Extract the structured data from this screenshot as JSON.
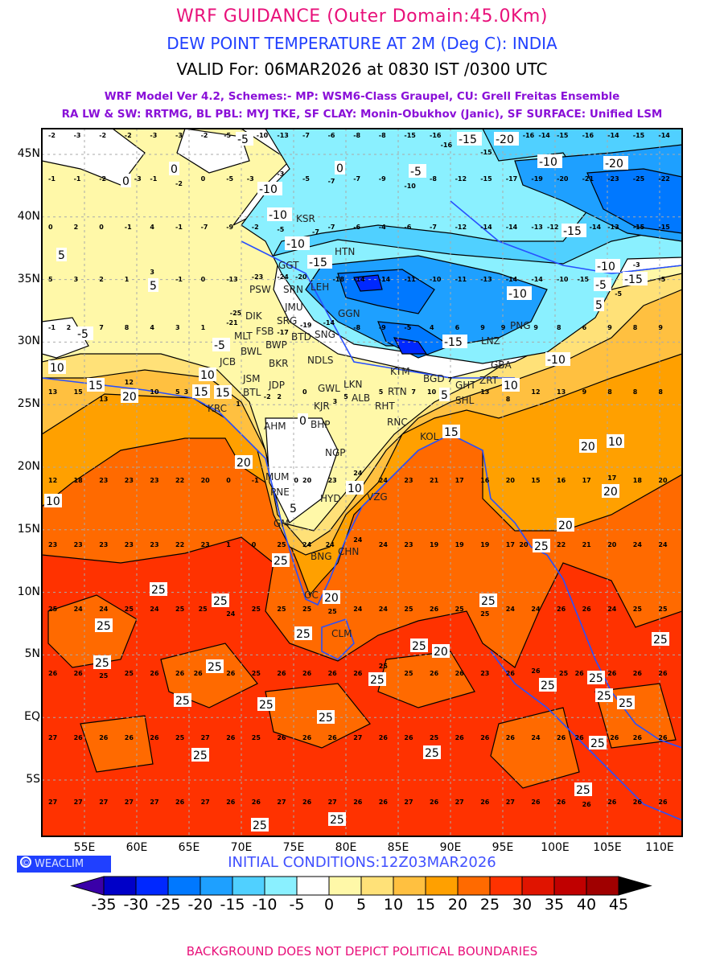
{
  "header": {
    "title": "WRF GUIDANCE (Outer Domain:45.0Km)",
    "subtitle": "DEW POINT TEMPERATURE AT 2M (Deg C): INDIA",
    "valid": "VALID For: 06MAR2026 at 0830 IST /0300 UTC",
    "model_line1": "WRF Model Ver 4.2, Schemes:- MP: WSM6-Class Graupel, CU: Grell Freitas Ensemble",
    "model_line2": "RA LW & SW: RRTMG, BL PBL: MYJ TKE, SF CLAY: Monin-Obukhov (Janic), SF SURFACE: Unified LSM"
  },
  "map": {
    "lat_labels": [
      "45N",
      "40N",
      "35N",
      "30N",
      "25N",
      "20N",
      "15N",
      "10N",
      "5N",
      "EQ",
      "5S"
    ],
    "lon_labels": [
      "55E",
      "60E",
      "65E",
      "70E",
      "75E",
      "80E",
      "85E",
      "90E",
      "95E",
      "100E",
      "105E",
      "110E"
    ],
    "stations": [
      "KSR",
      "HTN",
      "GGT",
      "LEH",
      "PSW",
      "SRN",
      "JMU",
      "DIK",
      "SRG",
      "FSB",
      "GGN",
      "MLT",
      "BWP",
      "BTD",
      "SNG",
      "BWL",
      "BKR",
      "NDLS",
      "JCB",
      "JSM",
      "JDP",
      "BTL",
      "GWL",
      "LKN",
      "ALB",
      "KJR",
      "RHT",
      "RTN",
      "KTM",
      "BGD",
      "GHT",
      "SHL",
      "ZRT",
      "GBA",
      "PNG",
      "LNZ",
      "KRC",
      "AHM",
      "BHP",
      "RNC",
      "KOL",
      "NGP",
      "MUM",
      "PNE",
      "HYD",
      "VZG",
      "GM",
      "BNG",
      "CHN",
      "OC",
      "CLM"
    ],
    "contour_labels": [
      "-5",
      "0",
      "0",
      "0",
      "-5",
      "-10",
      "-10",
      "-10",
      "-15",
      "-15",
      "-20",
      "-20",
      "-10",
      "-15",
      "-10",
      "-10",
      "-5",
      "-15",
      "-15",
      "-10",
      "5",
      "5",
      "-5",
      "5",
      "10",
      "15",
      "20",
      "15",
      "10",
      "10",
      "5",
      "0",
      "-5",
      "15",
      "20",
      "10",
      "20",
      "20",
      "15",
      "20",
      "10",
      "20",
      "25",
      "25",
      "25",
      "25",
      "25",
      "25",
      "25",
      "20",
      "25",
      "25",
      "25",
      "25",
      "25",
      "25",
      "25",
      "25",
      "25",
      "25",
      "25",
      "25",
      "25",
      "25",
      "25",
      "25",
      "5",
      "10",
      "25",
      "25"
    ],
    "grid_value_rows": [
      [
        "-2",
        "-3",
        "-2",
        "-2",
        "-3",
        "-3",
        "-2",
        "-5",
        "-10",
        "-13",
        "-7",
        "-6",
        "-8",
        "-8",
        "-15",
        "-16",
        "-16",
        "-15",
        "-16",
        "-14",
        "-15",
        "-16",
        "-14",
        "-15",
        "-14"
      ],
      [
        "-1",
        "-1",
        "-2",
        "-3",
        "-1",
        "-2",
        "0",
        "-5",
        "-3",
        "-3",
        "-5",
        "-7",
        "-7",
        "-9",
        "-10",
        "-8",
        "-12",
        "-15",
        "-17",
        "-19",
        "-20",
        "-21",
        "-23",
        "-25",
        "-22"
      ],
      [
        "0",
        "2",
        "0",
        "-1",
        "4",
        "-1",
        "-7",
        "-9",
        "-2",
        "-5",
        "-7",
        "-7",
        "-6",
        "-4",
        "-6",
        "-7",
        "-12",
        "-14",
        "-14",
        "-13",
        "-12",
        "-14",
        "-13",
        "-15",
        "-15"
      ],
      [
        "5",
        "3",
        "2",
        "1",
        "3",
        "-1",
        "0",
        "-13",
        "-23",
        "-24",
        "-20",
        "-18",
        "-14",
        "-14",
        "-11",
        "-10",
        "-11",
        "-13",
        "-14",
        "-14",
        "-10",
        "-15",
        "-5",
        "-3",
        "-5"
      ],
      [
        "-1",
        "2",
        "7",
        "8",
        "4",
        "3",
        "1",
        "-21",
        "-25",
        "-17",
        "-19",
        "-14",
        "-8",
        "-9",
        "-5",
        "4",
        "6",
        "9",
        "9",
        "9",
        "8",
        "6",
        "9",
        "8",
        "9"
      ],
      [
        "13",
        "15",
        "13",
        "12",
        "10",
        "5",
        "3",
        "1",
        "-2",
        "2",
        "0",
        "3",
        "5",
        "5",
        "7",
        "10",
        "7",
        "13",
        "8",
        "12",
        "13",
        "9",
        "8",
        "8",
        "8"
      ],
      [
        "12",
        "18",
        "23",
        "23",
        "23",
        "22",
        "20",
        "0",
        "-1",
        "0",
        "20",
        "23",
        "24",
        "24",
        "23",
        "21",
        "17",
        "16",
        "20",
        "15",
        "16",
        "17",
        "17",
        "18",
        "20"
      ],
      [
        "23",
        "23",
        "23",
        "23",
        "23",
        "22",
        "23",
        "1",
        "0",
        "25",
        "24",
        "24",
        "24",
        "24",
        "23",
        "19",
        "19",
        "19",
        "17",
        "20",
        "22",
        "21",
        "20",
        "24",
        "24"
      ],
      [
        "25",
        "24",
        "24",
        "25",
        "24",
        "25",
        "25",
        "24",
        "25",
        "25",
        "25",
        "25",
        "24",
        "24",
        "25",
        "26",
        "25",
        "25",
        "24",
        "24",
        "26",
        "26",
        "24",
        "25",
        "25"
      ],
      [
        "26",
        "26",
        "25",
        "25",
        "26",
        "26",
        "26",
        "26",
        "25",
        "26",
        "26",
        "26",
        "26",
        "25",
        "25",
        "26",
        "26",
        "23",
        "26",
        "26",
        "25",
        "26",
        "26",
        "26",
        "26"
      ],
      [
        "27",
        "26",
        "26",
        "26",
        "26",
        "25",
        "27",
        "26",
        "25",
        "26",
        "26",
        "26",
        "27",
        "26",
        "26",
        "25",
        "26",
        "26",
        "26",
        "24",
        "26",
        "26",
        "26",
        "26",
        "26"
      ],
      [
        "27",
        "27",
        "27",
        "27",
        "27",
        "26",
        "27",
        "26",
        "26",
        "27",
        "26",
        "27",
        "26",
        "26",
        "27",
        "26",
        "27",
        "26",
        "27",
        "26",
        "26",
        "26",
        "26",
        "26",
        "26"
      ]
    ]
  },
  "branding": {
    "label": "WEACLIM",
    "copyright": "©"
  },
  "initial_conditions": "INITIAL CONDITIONS:12Z03MAR2026",
  "colorbar": {
    "labels": [
      "-35",
      "-30",
      "-25",
      "-20",
      "-15",
      "-10",
      "-5",
      "0",
      "5",
      "10",
      "15",
      "20",
      "25",
      "30",
      "35",
      "40",
      "45"
    ],
    "colors": [
      "#3a00a8",
      "#0000c8",
      "#0028ff",
      "#0078ff",
      "#1ea0ff",
      "#50d0ff",
      "#8af0ff",
      "#ffffff",
      "#fff8a8",
      "#ffe178",
      "#ffc040",
      "#ffa000",
      "#ff6a00",
      "#ff3200",
      "#e01400",
      "#c00000",
      "#a00000",
      "#000000"
    ]
  },
  "footer": "BACKGROUND DOES NOT DEPICT POLITICAL BOUNDARIES"
}
